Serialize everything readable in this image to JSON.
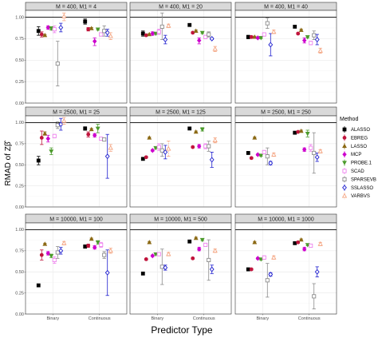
{
  "chart_data": {
    "type": "scatter",
    "subtype": "point-errorbar facet grid",
    "xlabel": "Predictor Type",
    "ylabel": "RMAD of Zβ̂",
    "x_categories": [
      "Binary",
      "Continuous"
    ],
    "ylim": [
      0.0,
      1.08
    ],
    "reference_line_y": 1.0,
    "y_ticks": [
      "0.00",
      "0.25",
      "0.50",
      "0.75",
      "1.00"
    ],
    "legend": {
      "title": "Method",
      "position": "right"
    },
    "grid": true,
    "methods": [
      {
        "name": "ALASSO",
        "color": "#000000",
        "shape": "square",
        "dashed": false
      },
      {
        "name": "EBREG",
        "color": "#c0143c",
        "shape": "circle",
        "dashed": false
      },
      {
        "name": "LASSO",
        "color": "#8b6914",
        "shape": "triangle",
        "dashed": false
      },
      {
        "name": "MCP",
        "color": "#cd00cd",
        "shape": "diamond",
        "dashed": false
      },
      {
        "name": "PROBE.1",
        "color": "#4a9a2a",
        "shape": "triangle-down",
        "dashed": false
      },
      {
        "name": "SCAD",
        "color": "#ee82ee",
        "shape": "square-open",
        "dashed": false
      },
      {
        "name": "SPARSEVB",
        "color": "#8c8c8c",
        "shape": "square-open",
        "dashed": false
      },
      {
        "name": "SSLASSO",
        "color": "#1f1fcf",
        "shape": "diamond-open",
        "dashed": false
      },
      {
        "name": "VARBVS",
        "color": "#f4a582",
        "shape": "triangle-open",
        "dashed": true
      }
    ],
    "panels": [
      {
        "title": "M = 400, M1 = 4",
        "series": [
          [
            [
              0.84,
              0.79,
              0.89
            ],
            [
              0.95,
              0.92,
              0.98
            ]
          ],
          [
            [
              0.8,
              0.77,
              0.83
            ],
            [
              0.86,
              0.84,
              0.88
            ]
          ],
          [
            [
              0.79,
              0.78,
              0.8
            ],
            [
              0.87,
              0.86,
              0.88
            ]
          ],
          [
            [
              0.88,
              0.86,
              0.9
            ],
            [
              0.72,
              0.67,
              0.76
            ]
          ],
          [
            [
              0.87,
              0.85,
              0.89
            ],
            [
              0.86,
              0.85,
              0.87
            ]
          ],
          [
            [
              0.86,
              0.82,
              0.9
            ],
            [
              0.8,
              0.78,
              0.82
            ]
          ],
          [
            [
              0.46,
              0.2,
              0.72
            ],
            [
              0.84,
              0.78,
              0.9
            ]
          ],
          [
            [
              0.88,
              0.83,
              0.93
            ],
            [
              0.82,
              0.78,
              0.86
            ]
          ],
          [
            [
              1.01,
              0.96,
              1.05
            ],
            [
              0.78,
              0.74,
              0.82
            ]
          ]
        ]
      },
      {
        "title": "M = 400, M1 = 20",
        "series": [
          [
            [
              0.81,
              0.78,
              0.84
            ],
            [
              0.91,
              0.9,
              0.92
            ]
          ],
          [
            [
              0.79,
              0.78,
              0.8
            ],
            [
              0.82,
              0.81,
              0.83
            ]
          ],
          [
            [
              0.8,
              0.79,
              0.81
            ],
            [
              0.84,
              0.83,
              0.85
            ]
          ],
          [
            [
              0.81,
              0.79,
              0.83
            ],
            [
              0.73,
              0.69,
              0.76
            ]
          ],
          [
            [
              0.81,
              0.8,
              0.82
            ],
            [
              0.82,
              0.81,
              0.83
            ]
          ],
          [
            [
              0.83,
              0.8,
              0.86
            ],
            [
              0.77,
              0.75,
              0.79
            ]
          ],
          [
            [
              0.89,
              0.74,
              1.05
            ],
            [
              0.8,
              0.77,
              0.83
            ]
          ],
          [
            [
              0.74,
              0.69,
              0.79
            ],
            [
              0.75,
              0.74,
              0.76
            ]
          ],
          [
            [
              0.9,
              0.88,
              0.92
            ],
            [
              0.63,
              0.6,
              0.66
            ]
          ]
        ]
      },
      {
        "title": "M = 400, M1 = 40",
        "series": [
          [
            [
              0.77,
              0.75,
              0.79
            ],
            [
              0.89,
              0.88,
              0.9
            ]
          ],
          [
            [
              0.77,
              0.76,
              0.78
            ],
            [
              0.81,
              0.8,
              0.82
            ]
          ],
          [
            [
              0.77,
              0.76,
              0.78
            ],
            [
              0.85,
              0.84,
              0.86
            ]
          ],
          [
            [
              0.76,
              0.75,
              0.77
            ],
            [
              0.73,
              0.7,
              0.76
            ]
          ],
          [
            [
              0.76,
              0.75,
              0.77
            ],
            [
              0.77,
              0.76,
              0.78
            ]
          ],
          [
            [
              0.8,
              0.78,
              0.82
            ],
            [
              0.7,
              0.68,
              0.72
            ]
          ],
          [
            [
              0.93,
              0.87,
              0.99
            ],
            [
              0.79,
              0.74,
              0.84
            ]
          ],
          [
            [
              0.68,
              0.55,
              0.81
            ],
            [
              0.74,
              0.68,
              0.8
            ]
          ],
          [
            [
              0.83,
              0.81,
              0.85
            ],
            [
              0.61,
              0.58,
              0.64
            ]
          ]
        ]
      },
      {
        "title": "M = 2500, M1 = 25",
        "series": [
          [
            [
              0.55,
              0.5,
              0.6
            ],
            [
              0.93,
              0.91,
              0.95
            ]
          ],
          [
            [
              0.82,
              0.74,
              0.9
            ],
            [
              0.86,
              0.83,
              0.89
            ]
          ],
          [
            [
              0.87,
              0.85,
              0.89
            ],
            [
              0.92,
              0.91,
              0.93
            ]
          ],
          [
            [
              0.81,
              0.77,
              0.85
            ],
            [
              0.85,
              0.83,
              0.87
            ]
          ],
          [
            [
              0.66,
              0.62,
              0.7
            ],
            [
              0.93,
              0.88,
              0.98
            ]
          ],
          [
            [
              0.84,
              0.82,
              0.86
            ],
            [
              0.81,
              0.79,
              0.83
            ]
          ],
          [
            [
              0.97,
              0.93,
              1.01
            ],
            [
              0.8,
              0.78,
              0.82
            ]
          ],
          [
            [
              0.98,
              0.91,
              1.05
            ],
            [
              0.6,
              0.34,
              0.86
            ]
          ],
          [
            [
              1.02,
              0.98,
              1.06
            ],
            [
              0.7,
              0.66,
              0.74
            ]
          ]
        ]
      },
      {
        "title": "M = 2500, M1 = 125",
        "series": [
          [
            [
              0.57,
              0.56,
              0.58
            ],
            [
              0.93,
              0.92,
              0.94
            ]
          ],
          [
            [
              0.59,
              0.58,
              0.6
            ],
            [
              0.71,
              0.7,
              0.72
            ]
          ],
          [
            [
              0.82,
              0.81,
              0.83
            ],
            [
              0.89,
              0.88,
              0.9
            ]
          ],
          [
            [
              0.67,
              0.66,
              0.68
            ],
            [
              0.72,
              0.7,
              0.74
            ]
          ],
          [
            [
              0.7,
              0.69,
              0.71
            ],
            [
              0.92,
              0.9,
              0.94
            ]
          ],
          [
            [
              0.71,
              0.67,
              0.75
            ],
            [
              0.72,
              0.69,
              0.75
            ]
          ],
          [
            [
              0.67,
              0.6,
              0.75
            ],
            [
              0.72,
              0.66,
              0.78
            ]
          ],
          [
            [
              0.65,
              0.57,
              0.73
            ],
            [
              0.56,
              0.47,
              0.65
            ]
          ],
          [
            [
              0.69,
              0.6,
              0.78
            ],
            [
              0.79,
              0.76,
              0.82
            ]
          ]
        ]
      },
      {
        "title": "M = 2500, M1 = 250",
        "series": [
          [
            [
              0.64,
              0.63,
              0.65
            ],
            [
              0.88,
              0.87,
              0.89
            ]
          ],
          [
            [
              0.58,
              0.57,
              0.59
            ],
            [
              0.89,
              0.88,
              0.9
            ]
          ],
          [
            [
              0.82,
              0.81,
              0.83
            ],
            [
              0.9,
              0.89,
              0.91
            ]
          ],
          [
            [
              0.62,
              0.61,
              0.63
            ],
            [
              0.68,
              0.66,
              0.7
            ]
          ],
          [
            [
              0.61,
              0.6,
              0.62
            ],
            [
              0.87,
              0.83,
              0.91
            ]
          ],
          [
            [
              0.65,
              0.63,
              0.67
            ],
            [
              0.7,
              0.66,
              0.74
            ]
          ],
          [
            [
              0.6,
              0.5,
              0.7
            ],
            [
              0.64,
              0.4,
              0.88
            ]
          ],
          [
            [
              0.52,
              0.5,
              0.54
            ],
            [
              0.59,
              0.54,
              0.64
            ]
          ],
          [
            [
              0.62,
              0.6,
              0.64
            ],
            [
              0.66,
              0.64,
              0.68
            ]
          ]
        ]
      },
      {
        "title": "M = 10000, M1 = 100",
        "series": [
          [
            [
              0.34,
              0.33,
              0.35
            ],
            [
              0.8,
              0.78,
              0.82
            ]
          ],
          [
            [
              0.7,
              0.64,
              0.76
            ],
            [
              0.81,
              0.79,
              0.83
            ]
          ],
          [
            [
              0.83,
              0.82,
              0.84
            ],
            [
              0.89,
              0.88,
              0.9
            ]
          ],
          [
            [
              0.72,
              0.7,
              0.74
            ],
            [
              0.79,
              0.77,
              0.81
            ]
          ],
          [
            [
              0.69,
              0.67,
              0.71
            ],
            [
              0.85,
              0.83,
              0.87
            ]
          ],
          [
            [
              0.64,
              0.6,
              0.68
            ],
            [
              0.82,
              0.79,
              0.85
            ]
          ],
          [
            [
              0.73,
              0.66,
              0.8
            ],
            [
              0.7,
              0.66,
              0.74
            ]
          ],
          [
            [
              0.75,
              0.71,
              0.79
            ],
            [
              0.49,
              0.22,
              0.76
            ]
          ],
          [
            [
              0.84,
              0.82,
              0.86
            ],
            [
              0.75,
              0.72,
              0.78
            ]
          ]
        ]
      },
      {
        "title": "M = 10000, M1 = 500",
        "series": [
          [
            [
              0.48,
              0.47,
              0.49
            ],
            [
              0.86,
              0.85,
              0.87
            ]
          ],
          [
            [
              0.65,
              0.64,
              0.66
            ],
            [
              0.66,
              0.65,
              0.67
            ]
          ],
          [
            [
              0.85,
              0.84,
              0.86
            ],
            [
              0.9,
              0.89,
              0.91
            ]
          ],
          [
            [
              0.69,
              0.68,
              0.7
            ],
            [
              0.77,
              0.75,
              0.79
            ]
          ],
          [
            [
              0.71,
              0.7,
              0.72
            ],
            [
              0.88,
              0.87,
              0.89
            ]
          ],
          [
            [
              0.71,
              0.69,
              0.73
            ],
            [
              0.82,
              0.8,
              0.84
            ]
          ],
          [
            [
              0.56,
              0.35,
              0.77
            ],
            [
              0.64,
              0.4,
              0.88
            ]
          ],
          [
            [
              0.55,
              0.52,
              0.58
            ],
            [
              0.53,
              0.48,
              0.58
            ]
          ],
          [
            [
              0.71,
              0.69,
              0.73
            ],
            [
              0.75,
              0.73,
              0.77
            ]
          ]
        ]
      },
      {
        "title": "M = 10000, M1 = 1000",
        "series": [
          [
            [
              0.53,
              0.52,
              0.54
            ],
            [
              0.84,
              0.83,
              0.85
            ]
          ],
          [
            [
              0.53,
              0.52,
              0.54
            ],
            [
              0.85,
              0.84,
              0.86
            ]
          ],
          [
            [
              0.85,
              0.84,
              0.86
            ],
            [
              0.88,
              0.87,
              0.89
            ]
          ],
          [
            [
              0.66,
              0.65,
              0.67
            ],
            [
              0.77,
              0.75,
              0.79
            ]
          ],
          [
            [
              0.65,
              0.64,
              0.66
            ],
            [
              0.82,
              0.81,
              0.83
            ]
          ],
          [
            [
              0.67,
              0.65,
              0.69
            ],
            [
              0.81,
              0.79,
              0.83
            ]
          ],
          [
            [
              0.4,
              0.2,
              0.6
            ],
            [
              0.21,
              0.06,
              0.36
            ]
          ],
          [
            [
              0.47,
              0.45,
              0.49
            ],
            [
              0.5,
              0.44,
              0.56
            ]
          ],
          [
            [
              0.67,
              0.65,
              0.69
            ],
            [
              0.83,
              0.81,
              0.85
            ]
          ]
        ]
      }
    ]
  }
}
